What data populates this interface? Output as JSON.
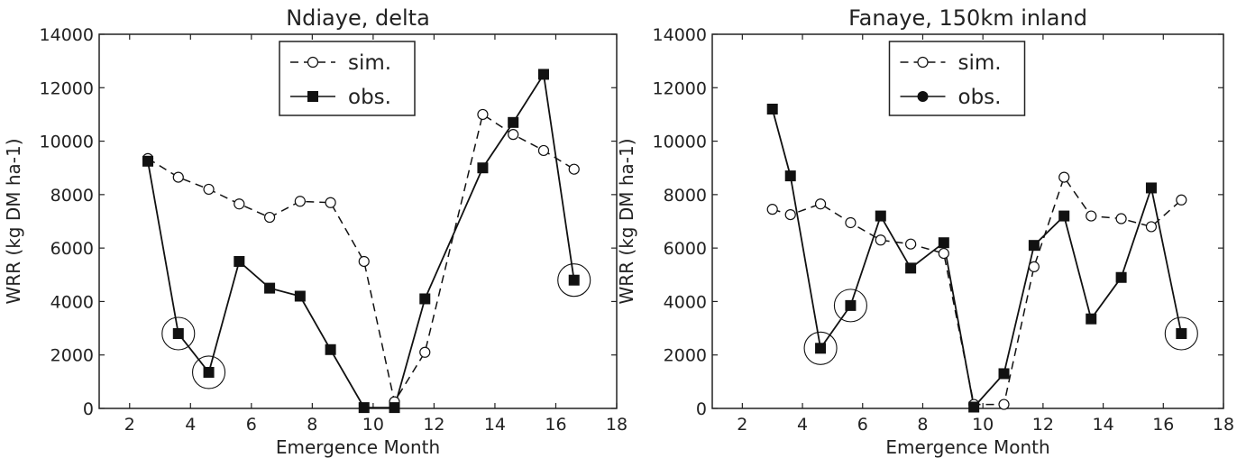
{
  "chart_data": [
    {
      "type": "line",
      "title": "Ndiaye, delta",
      "xlabel": "Emergence Month",
      "ylabel": "WRR (kg DM ha-1)",
      "xlim": [
        1,
        18
      ],
      "ylim": [
        0,
        14000
      ],
      "xticks": [
        2,
        4,
        6,
        8,
        10,
        12,
        14,
        16,
        18
      ],
      "yticks": [
        0,
        2000,
        4000,
        6000,
        8000,
        10000,
        12000,
        14000
      ],
      "legend_position": "top-center",
      "series": [
        {
          "name": "sim.",
          "style": "dashed",
          "marker": "open-circle",
          "points": [
            [
              2.6,
              9350
            ],
            [
              3.6,
              8650
            ],
            [
              4.6,
              8200
            ],
            [
              5.6,
              7650
            ],
            [
              6.6,
              7150
            ],
            [
              7.6,
              7750
            ],
            [
              8.6,
              7700
            ],
            [
              9.7,
              5500
            ],
            [
              10.7,
              250
            ],
            [
              11.7,
              2100
            ],
            [
              13.6,
              11000
            ],
            [
              14.6,
              10250
            ],
            [
              15.6,
              9650
            ],
            [
              16.6,
              8950
            ]
          ]
        },
        {
          "name": "obs.",
          "style": "solid",
          "marker": "filled-square",
          "points": [
            [
              2.6,
              9250
            ],
            [
              3.6,
              2800
            ],
            [
              4.6,
              1350
            ],
            [
              5.6,
              5500
            ],
            [
              6.6,
              4500
            ],
            [
              7.6,
              4200
            ],
            [
              8.6,
              2200
            ],
            [
              9.7,
              30
            ],
            [
              10.7,
              30
            ],
            [
              11.7,
              4100
            ],
            [
              13.6,
              9000
            ],
            [
              14.6,
              10700
            ],
            [
              15.6,
              12500
            ],
            [
              16.6,
              4800
            ]
          ]
        }
      ],
      "circled_points": [
        [
          3.6,
          2800
        ],
        [
          4.6,
          1350
        ],
        [
          16.6,
          4800
        ]
      ]
    },
    {
      "type": "line",
      "title": "Fanaye, 150km inland",
      "xlabel": "Emergence Month",
      "ylabel": "WRR (kg DM ha-1)",
      "xlim": [
        1,
        18
      ],
      "ylim": [
        0,
        14000
      ],
      "xticks": [
        2,
        4,
        6,
        8,
        10,
        12,
        14,
        16,
        18
      ],
      "yticks": [
        0,
        2000,
        4000,
        6000,
        8000,
        10000,
        12000,
        14000
      ],
      "legend_position": "top-center",
      "legend_obs_marker": "filled-circle",
      "series": [
        {
          "name": "sim.",
          "style": "dashed",
          "marker": "open-circle",
          "points": [
            [
              3.0,
              7450
            ],
            [
              3.6,
              7250
            ],
            [
              4.6,
              7650
            ],
            [
              5.6,
              6950
            ],
            [
              6.6,
              6300
            ],
            [
              7.6,
              6150
            ],
            [
              8.7,
              5800
            ],
            [
              9.7,
              150
            ],
            [
              10.7,
              150
            ],
            [
              11.7,
              5300
            ],
            [
              12.7,
              8650
            ],
            [
              13.6,
              7200
            ],
            [
              14.6,
              7100
            ],
            [
              15.6,
              6800
            ],
            [
              16.6,
              7800
            ]
          ]
        },
        {
          "name": "obs.",
          "style": "solid",
          "marker": "filled-square",
          "points": [
            [
              3.0,
              11200
            ],
            [
              3.6,
              8700
            ],
            [
              4.6,
              2250
            ],
            [
              5.6,
              3850
            ],
            [
              6.6,
              7200
            ],
            [
              7.6,
              5250
            ],
            [
              8.7,
              6200
            ],
            [
              9.7,
              50
            ],
            [
              10.7,
              1300
            ],
            [
              11.7,
              6100
            ],
            [
              12.7,
              7200
            ],
            [
              13.6,
              3350
            ],
            [
              14.6,
              4900
            ],
            [
              15.6,
              8250
            ],
            [
              16.6,
              2800
            ]
          ]
        }
      ],
      "circled_points": [
        [
          4.6,
          2250
        ],
        [
          5.6,
          3850
        ],
        [
          16.6,
          2800
        ]
      ]
    }
  ]
}
